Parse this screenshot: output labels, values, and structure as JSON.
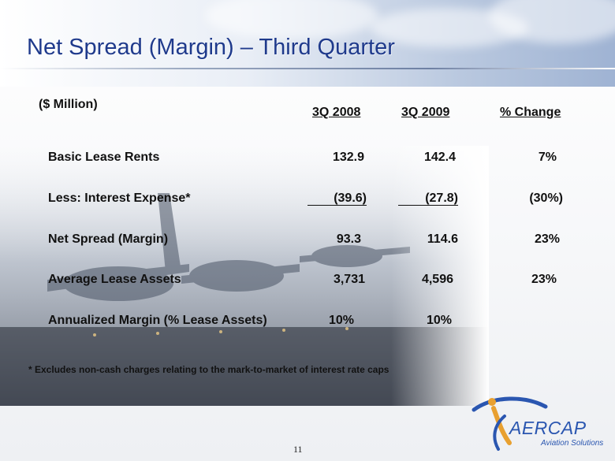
{
  "slide": {
    "title": "Net Spread (Margin) – Third Quarter",
    "unit_label": "($ Million)",
    "columns": [
      "3Q 2008",
      "3Q 2009",
      "% Change"
    ],
    "rows": [
      {
        "label": "Basic Lease Rents",
        "q2008": "132.9",
        "q2009": "142.4",
        "change": "7%"
      },
      {
        "label": "Less: Interest Expense*",
        "q2008": "(39.6)",
        "q2009": "(27.8)",
        "change": "(30%)"
      },
      {
        "label": "Net Spread (Margin)",
        "q2008": "93.3",
        "q2009": "114.6",
        "change": "23%"
      },
      {
        "label": "Average Lease Assets",
        "q2008": "3,731",
        "q2009": "4,596",
        "change": "23%"
      },
      {
        "label": "Annualized Margin (% Lease Assets)",
        "q2008": "10%",
        "q2009": "10%",
        "change": ""
      }
    ],
    "footnote": "* Excludes non-cash charges relating to the mark-to-market of interest rate caps",
    "page_number": "11"
  },
  "logo": {
    "wordmark": "AERCAP",
    "tagline": "Aviation Solutions"
  },
  "colors": {
    "title": "#1f3a8c",
    "logo_blue": "#2a56b0",
    "logo_orange": "#e8a030"
  }
}
